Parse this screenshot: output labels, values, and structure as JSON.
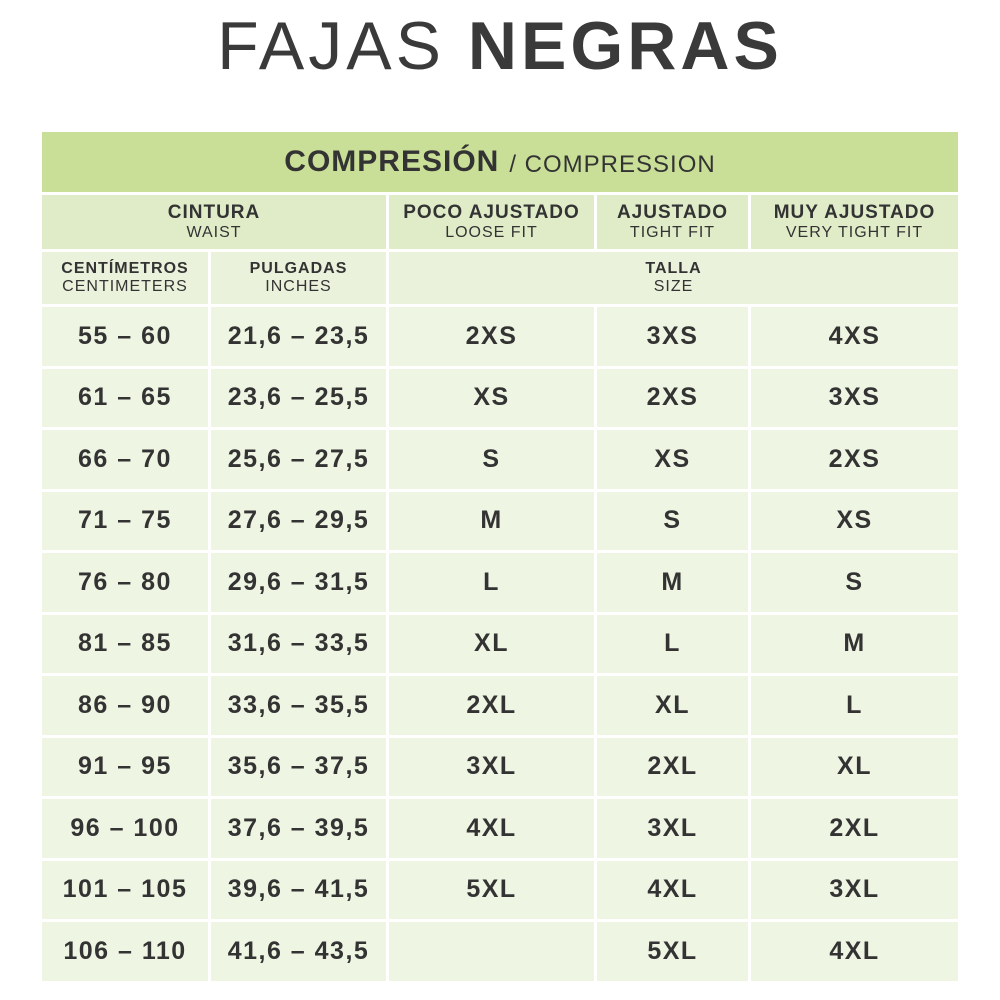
{
  "header": {
    "title_light": "FAJAS",
    "title_bold": "NEGRAS"
  },
  "table": {
    "caption": {
      "main": "COMPRESIÓN",
      "sub": "/ COMPRESSION"
    },
    "columns": [
      {
        "label": "CINTURA",
        "sub": "WAIST"
      },
      {
        "label": "POCO AJUSTADO",
        "sub": "LOOSE FIT"
      },
      {
        "label": "AJUSTADO",
        "sub": "TIGHT FIT"
      },
      {
        "label": "MUY AJUSTADO",
        "sub": "VERY TIGHT FIT"
      }
    ],
    "units": [
      {
        "label": "CENTÍMETROS",
        "sub": "CENTIMETERS"
      },
      {
        "label": "PULGADAS",
        "sub": "INCHES"
      },
      {
        "label": "TALLA",
        "sub": "SIZE"
      }
    ],
    "rows": [
      [
        "55 – 60",
        "21,6 – 23,5",
        "2XS",
        "3XS",
        "4XS"
      ],
      [
        "61 – 65",
        "23,6 – 25,5",
        "XS",
        "2XS",
        "3XS"
      ],
      [
        "66 – 70",
        "25,6 – 27,5",
        "S",
        "XS",
        "2XS"
      ],
      [
        "71 – 75",
        "27,6 – 29,5",
        "M",
        "S",
        "XS"
      ],
      [
        "76 – 80",
        "29,6 – 31,5",
        "L",
        "M",
        "S"
      ],
      [
        "81 – 85",
        "31,6 – 33,5",
        "XL",
        "L",
        "M"
      ],
      [
        "86 – 90",
        "33,6 – 35,5",
        "2XL",
        "XL",
        "L"
      ],
      [
        "91 – 95",
        "35,6 – 37,5",
        "3XL",
        "2XL",
        "XL"
      ],
      [
        "96 – 100",
        "37,6 – 39,5",
        "4XL",
        "3XL",
        "2XL"
      ],
      [
        "101 – 105",
        "39,6 – 41,5",
        "5XL",
        "4XL",
        "3XL"
      ],
      [
        "106 – 110",
        "41,6 – 43,5",
        null,
        "5XL",
        "4XL"
      ]
    ]
  }
}
